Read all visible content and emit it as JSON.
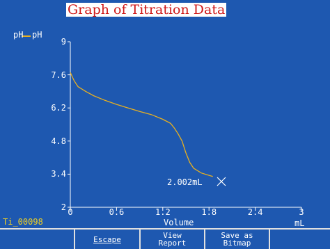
{
  "window": {
    "title": "Graph of Titration Data"
  },
  "graph": {
    "y_axis_title": "pH",
    "legend_label": "pH",
    "x_axis_title": "Volume",
    "x_unit": "mL",
    "y_ticks": [
      "9",
      "7.6",
      "6.2",
      "4.8",
      "3.4",
      "2"
    ],
    "x_ticks": [
      "0",
      "0.6",
      "1.2",
      "1.8",
      "2.4",
      "3"
    ],
    "cursor_readout": "2.002mL",
    "curve_color": "#e8b020",
    "bg_color": "#1e58b0"
  },
  "status": {
    "file_id": "Ti_00098"
  },
  "buttons": {
    "escape": "Escape",
    "view_report": "View\nReport",
    "save_bitmap": "Save as\nBitmap"
  },
  "chart_data": {
    "type": "line",
    "title": "Graph of Titration Data",
    "xlabel": "Volume",
    "ylabel": "pH",
    "xlim": [
      0,
      3
    ],
    "ylim": [
      2,
      9
    ],
    "series": [
      {
        "name": "pH",
        "x": [
          0,
          0.05,
          0.1,
          0.2,
          0.3,
          0.45,
          0.6,
          0.75,
          0.9,
          1.05,
          1.2,
          1.3,
          1.35,
          1.4,
          1.45,
          1.5,
          1.55,
          1.6,
          1.7,
          1.8,
          1.85
        ],
        "y": [
          7.7,
          7.35,
          7.1,
          6.9,
          6.72,
          6.52,
          6.35,
          6.2,
          6.05,
          5.92,
          5.72,
          5.55,
          5.35,
          5.1,
          4.8,
          4.3,
          3.9,
          3.65,
          3.45,
          3.35,
          3.3
        ]
      }
    ],
    "cursor": {
      "x": 2.002,
      "label": "2.002mL"
    }
  }
}
